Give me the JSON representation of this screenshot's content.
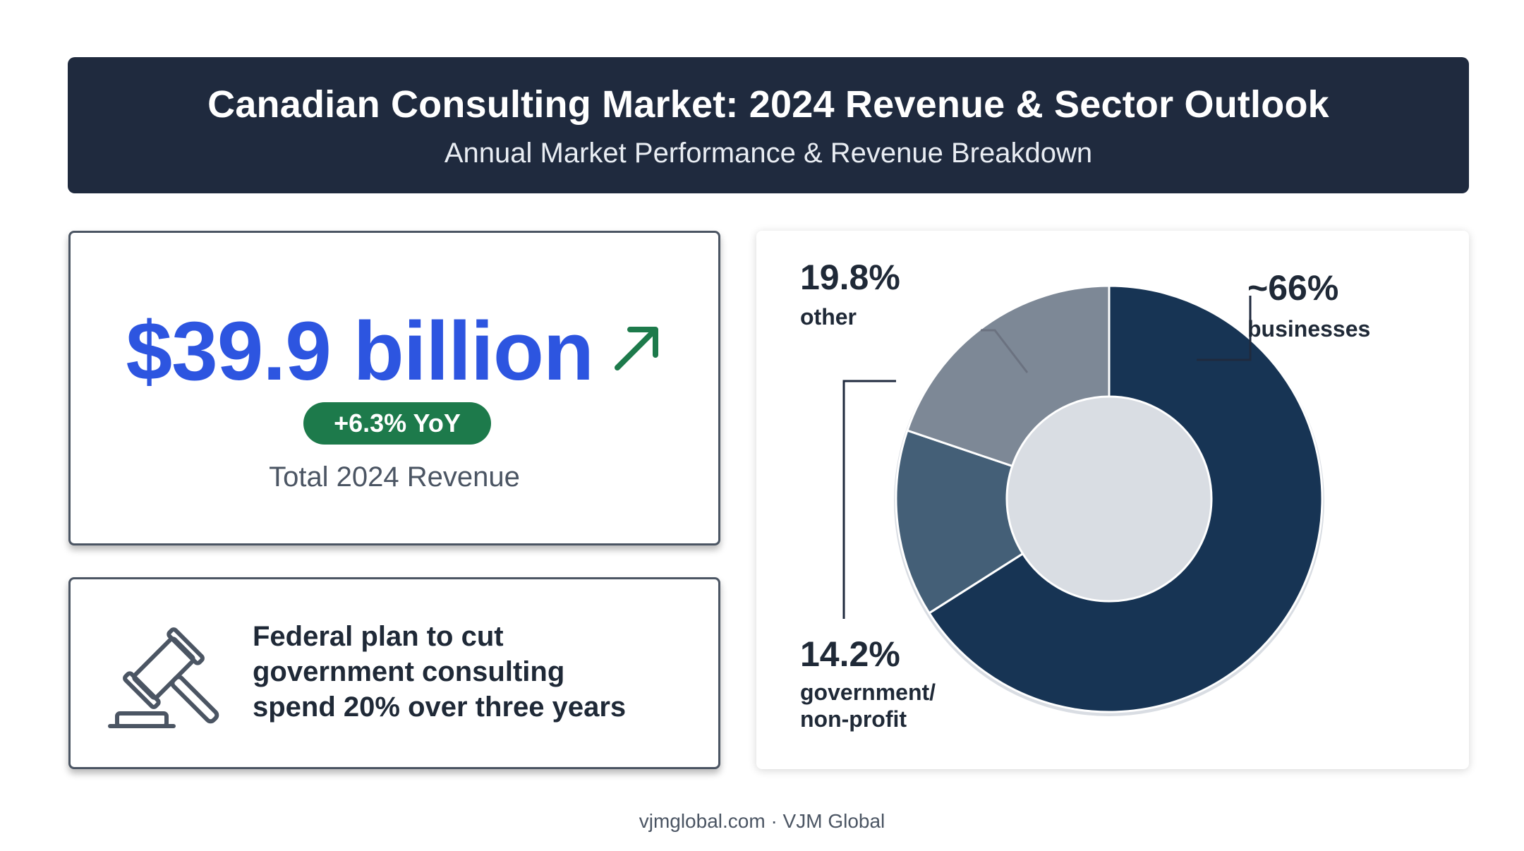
{
  "header": {
    "title": "Canadian Consulting Market: 2024 Revenue & Sector Outlook",
    "subtitle": "Annual Market Performance & Revenue Breakdown"
  },
  "revenue": {
    "value": "$39.9 billion",
    "icon": "arrow-up-right-icon",
    "growth_badge": "+6.3% YoY",
    "caption": "Total 2024 Revenue"
  },
  "policy": {
    "icon": "gavel-icon",
    "lines": [
      "Federal plan to cut",
      "government consulting",
      "spend 20% over three years"
    ]
  },
  "chart_data": {
    "type": "pie",
    "title": "",
    "series": [
      {
        "name": "businesses",
        "value": 66,
        "label": "~66%",
        "category": "businesses",
        "color": "#173454"
      },
      {
        "name": "government/non-profit",
        "value": 14.2,
        "label": "14.2%",
        "category": "government/ non-profit",
        "color": "#445f77"
      },
      {
        "name": "other",
        "value": 19.8,
        "label": "19.8%",
        "category": "other",
        "color": "#7d8896"
      }
    ],
    "legend": "none"
  },
  "footer": "vjmglobal.com · VJM Global",
  "colors": {
    "header_bg": "#1f2a3e",
    "accent_blue": "#2d55e0",
    "growth_green": "#1d7a4b",
    "card_border": "#4b5563"
  }
}
